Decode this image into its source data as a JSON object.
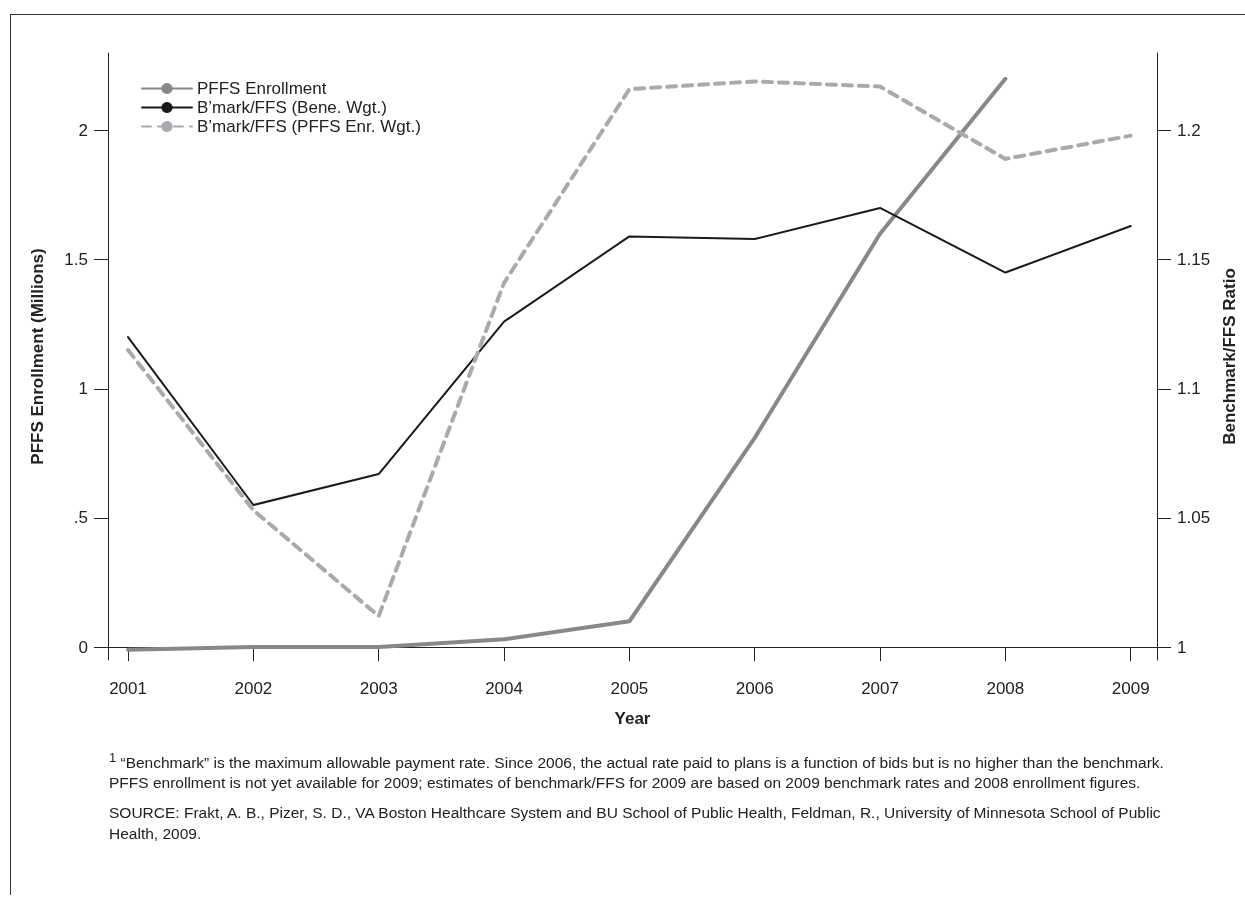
{
  "chart_data": {
    "type": "line",
    "xlabel": "Year",
    "ylabel": "PFFS Enrollment (Millions)",
    "y2label": "Benchmark/FFS Ratio",
    "x": [
      2001,
      2002,
      2003,
      2004,
      2005,
      2006,
      2007,
      2008,
      2009
    ],
    "xlim": [
      2000.84,
      2009.21
    ],
    "xticks": [
      2001,
      2002,
      2003,
      2004,
      2005,
      2006,
      2007,
      2008,
      2009
    ],
    "ylim": [
      -0.05,
      2.3
    ],
    "yticks": [
      0,
      {
        "value": 0.5,
        "label": ".5"
      },
      1,
      1.5,
      2
    ],
    "y2lim": [
      0.995,
      1.23
    ],
    "y2ticks": [
      1,
      1.05,
      1.1,
      1.15,
      1.2
    ],
    "series": [
      {
        "name": "PFFS Enrollment",
        "color": "#87888b",
        "line_style": "solid",
        "values": [
          -0.01,
          0,
          0,
          0.03,
          0.1,
          0.81,
          1.6,
          2.2,
          null
        ]
      },
      {
        "name": "B’mark/FFS (Bene. Wgt.)",
        "color": "#1a1a1a",
        "line_style": "solid",
        "axis": "y2",
        "values": [
          1.12,
          1.055,
          1.067,
          1.126,
          1.159,
          1.158,
          1.17,
          1.145,
          1.163
        ]
      },
      {
        "name": "B’mark/FFS (PFFS Enr. Wgt.)",
        "color": "#a9aaad",
        "line_style": "dashed",
        "axis": "y2",
        "values": [
          1.115,
          1.053,
          1.012,
          1.141,
          1.216,
          1.219,
          1.217,
          1.189,
          1.198
        ]
      }
    ],
    "legend": "top left",
    "grid": false,
    "marker": "none",
    "annotations": [
      "$^{1}$ “Benchmark” is the maximum allowable payment rate. Since 2006, the actual rate paid to plans is a function of bids but is no higher than the benchmark. PFFS enrollment is not yet available for 2009; estimates of benchmark/FFS for 2009 are based on 2009 benchmark rates and 2008 enrollment figures.",
      "SOURCE: Frakt, A. B., Pizer, S. D., VA Boston Healthcare System and BU School of Public Health, Feldman, R.,  University of Minnesota School of Public Health, 2009."
    ]
  }
}
